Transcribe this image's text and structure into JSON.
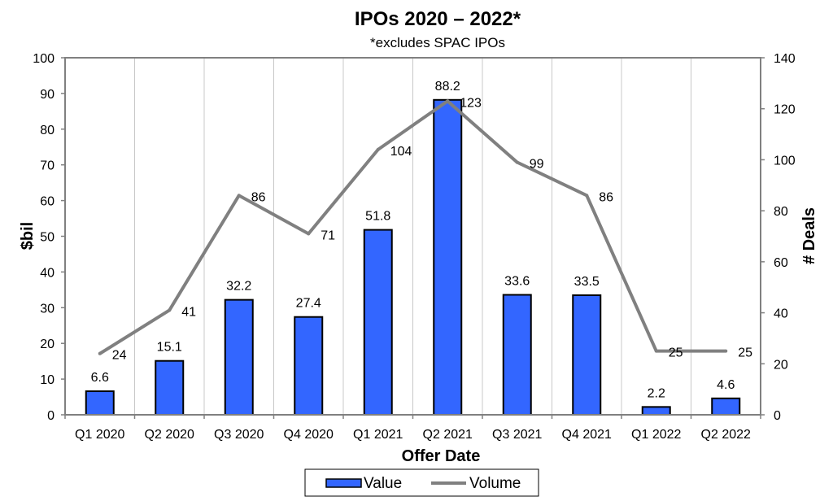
{
  "chart_data": {
    "type": "bar",
    "title": "IPOs 2020 – 2022*",
    "subtitle": "*excludes SPAC IPOs",
    "xlabel": "Offer Date",
    "ylabel": "$bil",
    "y2label": "# Deals",
    "categories": [
      "Q1 2020",
      "Q2 2020",
      "Q3 2020",
      "Q4 2020",
      "Q1 2021",
      "Q2 2021",
      "Q3 2021",
      "Q4 2021",
      "Q1 2022",
      "Q2 2022"
    ],
    "ylim": [
      0,
      100
    ],
    "yticks": [
      0,
      10,
      20,
      30,
      40,
      50,
      60,
      70,
      80,
      90,
      100
    ],
    "y2lim": [
      0,
      140
    ],
    "y2ticks": [
      0,
      20,
      40,
      60,
      80,
      100,
      120,
      140
    ],
    "grid": "vertical",
    "series": [
      {
        "name": "Value",
        "type": "bar",
        "axis": "left",
        "color": "#3366FF",
        "values": [
          6.6,
          15.1,
          32.2,
          27.4,
          51.8,
          88.2,
          33.6,
          33.5,
          2.2,
          4.6
        ]
      },
      {
        "name": "Volume",
        "type": "line",
        "axis": "right",
        "color": "#808080",
        "values": [
          24,
          41,
          86,
          71,
          104,
          123,
          99,
          86,
          25,
          25
        ]
      }
    ],
    "legend": {
      "position": "bottom-center",
      "items": [
        "Value",
        "Volume"
      ]
    }
  }
}
